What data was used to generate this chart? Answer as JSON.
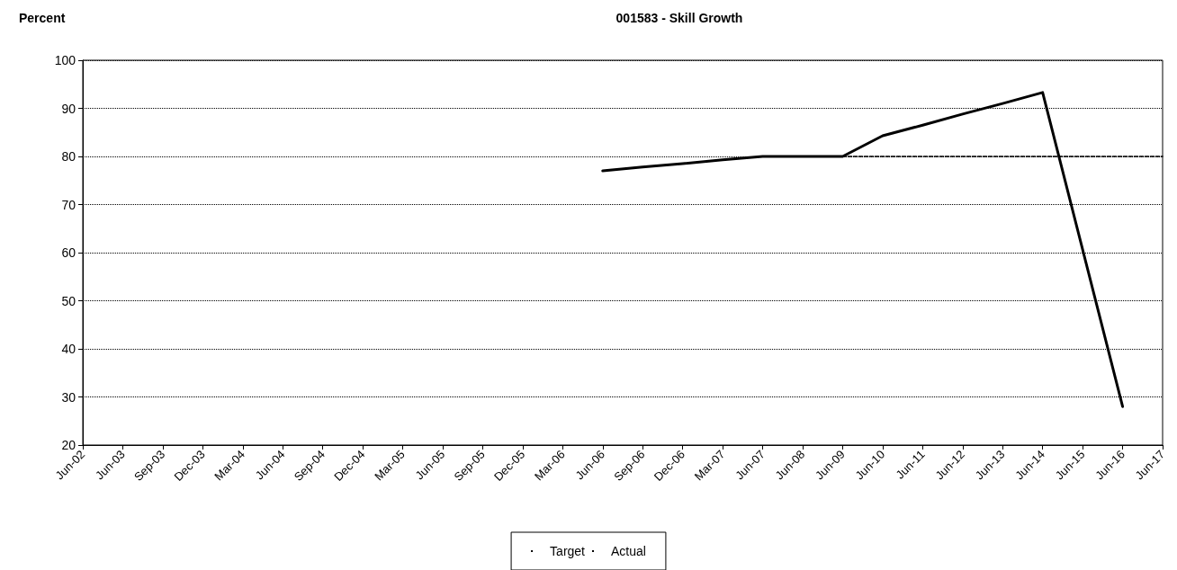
{
  "chart_data": {
    "type": "line",
    "title": "001583 - Skill Growth",
    "ylabel": "Percent",
    "categories": [
      "Jun-02",
      "Jun-03",
      "Sep-03",
      "Dec-03",
      "Mar-04",
      "Jun-04",
      "Sep-04",
      "Dec-04",
      "Mar-05",
      "Jun-05",
      "Sep-05",
      "Dec-05",
      "Mar-06",
      "Jun-06",
      "Sep-06",
      "Dec-06",
      "Mar-07",
      "Jun-07",
      "Jun-08",
      "Jun-09",
      "Jun-10",
      "Jun-11",
      "Jun-12",
      "Jun-13",
      "Jun-14",
      "Jun-15",
      "Jun-16",
      "Jun-17"
    ],
    "series": [
      {
        "name": "Target",
        "color": "#000000",
        "line_style": "dashed",
        "values": [
          null,
          null,
          null,
          null,
          null,
          null,
          null,
          null,
          null,
          null,
          null,
          null,
          null,
          null,
          null,
          null,
          null,
          null,
          null,
          80,
          80,
          80,
          80,
          80,
          80,
          80,
          80,
          80
        ]
      },
      {
        "name": "Actual",
        "color": "#000000",
        "line_style": "solid",
        "values": [
          null,
          null,
          null,
          null,
          null,
          null,
          null,
          null,
          null,
          null,
          null,
          null,
          null,
          77,
          77.8,
          78.5,
          79.3,
          80,
          80,
          80,
          84.3,
          86.5,
          88.8,
          91,
          93.3,
          null,
          28,
          null
        ]
      }
    ],
    "ylim": [
      20,
      100
    ],
    "yticks": [
      20,
      30,
      40,
      50,
      60,
      70,
      80,
      90,
      100
    ],
    "grid": "y",
    "legend": "bottom",
    "marker": "none"
  }
}
